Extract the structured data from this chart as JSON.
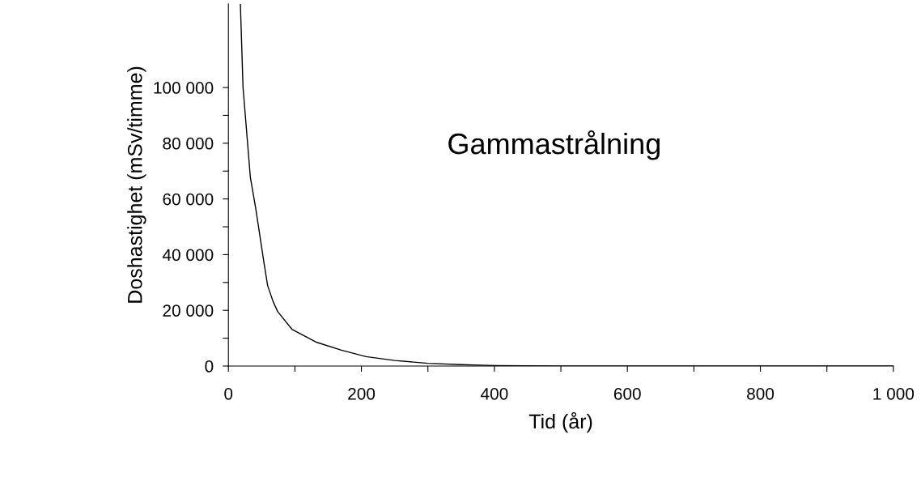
{
  "chart_data": {
    "type": "line",
    "xlabel": "Tid (år)",
    "ylabel": "Doshastighet (mSv/timme)",
    "annotations": [
      "Gammastrålning"
    ],
    "x": [
      18,
      22,
      33,
      41,
      54,
      59,
      67,
      74,
      96,
      133,
      170,
      207,
      250,
      300,
      350,
      400,
      450,
      500,
      600,
      800,
      1000
    ],
    "series": [
      {
        "color": "#000000",
        "values": [
          130000,
          100000,
          67800,
          56700,
          36300,
          28900,
          23300,
          19600,
          13100,
          8500,
          5700,
          3400,
          2000,
          1000,
          500,
          200,
          100,
          0,
          0,
          0,
          0
        ]
      }
    ],
    "xlim": [
      0,
      1000
    ],
    "ylim": [
      0,
      130000
    ],
    "xticks": [
      0,
      {
        "value": 100,
        "label": null
      },
      200,
      {
        "value": 300,
        "label": null
      },
      400,
      {
        "value": 500,
        "label": null
      },
      600,
      {
        "value": 700,
        "label": null
      },
      800,
      {
        "value": 900,
        "label": null
      },
      {
        "value": 1000,
        "label": "1 000"
      }
    ],
    "yticks": [
      0,
      {
        "value": 10000,
        "label": null
      },
      {
        "value": 20000,
        "label": "20 000"
      },
      {
        "value": 30000,
        "label": null
      },
      {
        "value": 40000,
        "label": "40 000"
      },
      {
        "value": 50000,
        "label": null
      },
      {
        "value": 60000,
        "label": "60 000"
      },
      {
        "value": 70000,
        "label": null
      },
      {
        "value": 80000,
        "label": "80 000"
      },
      {
        "value": 90000,
        "label": null
      },
      {
        "value": 100000,
        "label": "100 000"
      }
    ],
    "grid": false,
    "legend": false,
    "marker": "none",
    "line_style": "solid"
  }
}
